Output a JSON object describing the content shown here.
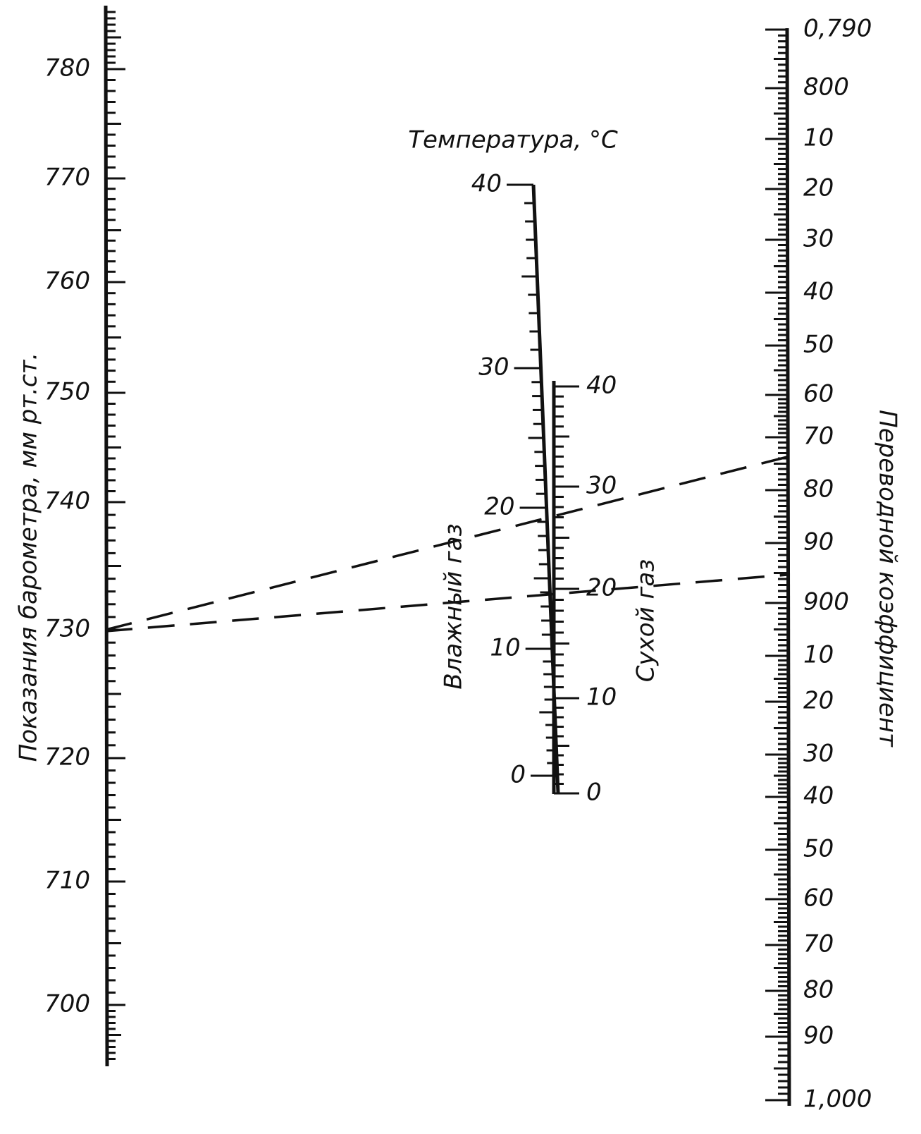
{
  "barometer": {
    "title": "Показания барометра, мм рт.ст.",
    "labels": [
      "780",
      "770",
      "760",
      "750",
      "740",
      "730",
      "720",
      "710",
      "700"
    ]
  },
  "temperature": {
    "title": "Температура, °C",
    "wet": {
      "title": "Влажный газ",
      "labels": [
        "40",
        "30",
        "20",
        "10",
        "0"
      ]
    },
    "dry": {
      "title": "Сухой газ",
      "labels": [
        "40",
        "30",
        "20",
        "10",
        "0"
      ]
    }
  },
  "coefficient": {
    "title": "Переводной коэффициент",
    "labels": [
      "0,790",
      "800",
      "10",
      "20",
      "30",
      "40",
      "50",
      "60",
      "70",
      "80",
      "90",
      "900",
      "10",
      "20",
      "30",
      "40",
      "50",
      "60",
      "70",
      "80",
      "90",
      "1,000"
    ]
  }
}
